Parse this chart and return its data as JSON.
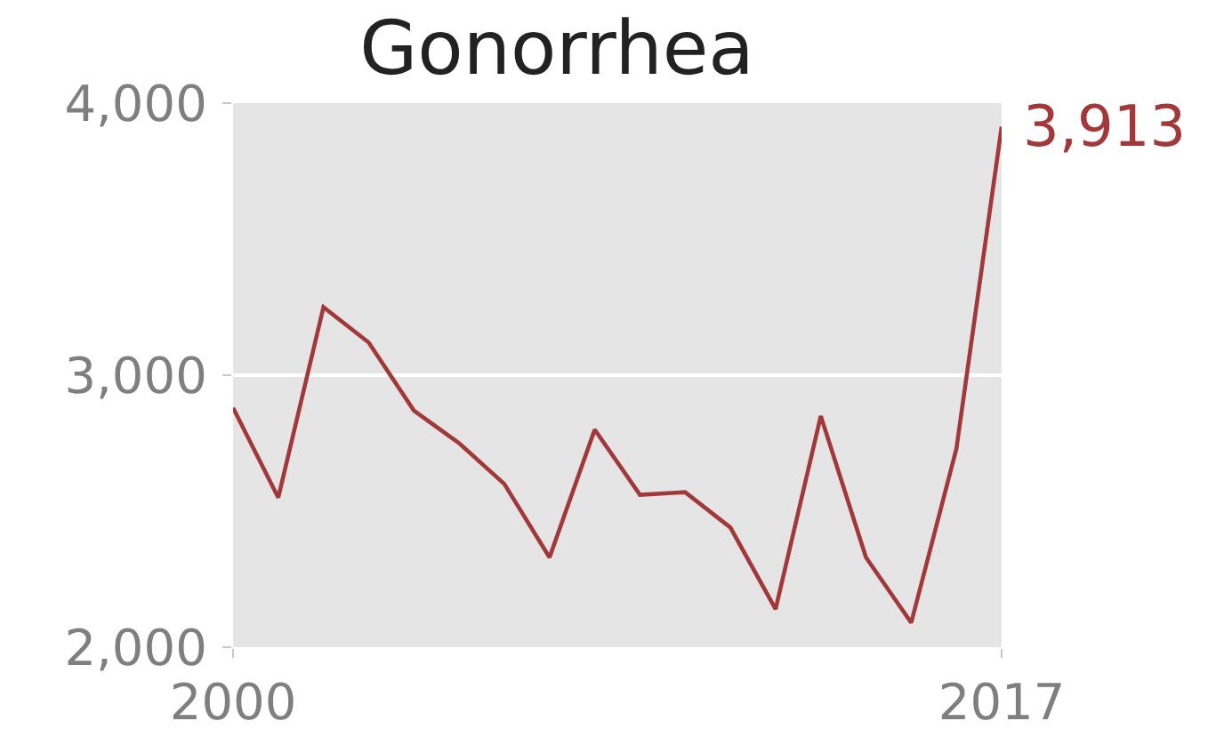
{
  "chart_data": {
    "type": "line",
    "title": "Gonorrhea",
    "x": [
      2000,
      2001,
      2002,
      2003,
      2004,
      2005,
      2006,
      2007,
      2008,
      2009,
      2010,
      2011,
      2012,
      2013,
      2014,
      2015,
      2016,
      2017
    ],
    "series": [
      {
        "color": "#a3383a",
        "values": [
          2880,
          2550,
          3250,
          3120,
          2870,
          2750,
          2600,
          2330,
          2800,
          2560,
          2570,
          2440,
          2140,
          2850,
          2330,
          2090,
          2730,
          3913
        ]
      }
    ],
    "xlim": [
      2000,
      2017
    ],
    "xticks": [
      2000,
      2017
    ],
    "ylim": [
      2000,
      4000
    ],
    "yticks": [
      {
        "value": 2000,
        "label": "2,000"
      },
      {
        "value": 3000,
        "label": "3,000"
      },
      {
        "value": 4000,
        "label": "4,000"
      }
    ],
    "grid": "y",
    "annotations": [
      {
        "text": "3,913",
        "x": 2017,
        "y": 3913
      }
    ]
  }
}
